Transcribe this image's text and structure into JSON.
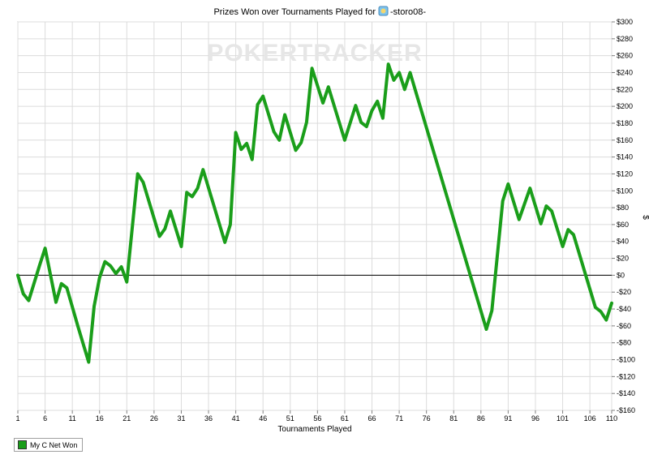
{
  "chart_data": {
    "type": "line",
    "title": "Prizes Won over Tournaments Played for",
    "player_name": "-storo08-",
    "watermark": "POKERTRACKER",
    "xlabel": "Tournaments Played",
    "ylabel": "$",
    "xlim": [
      1,
      110
    ],
    "ylim": [
      -160,
      300
    ],
    "x_ticks": [
      1,
      6,
      11,
      16,
      21,
      26,
      31,
      36,
      41,
      46,
      51,
      56,
      61,
      66,
      71,
      76,
      81,
      86,
      91,
      96,
      101,
      106,
      110
    ],
    "y_ticks": [
      300,
      280,
      260,
      240,
      220,
      200,
      180,
      160,
      140,
      120,
      100,
      80,
      60,
      40,
      20,
      0,
      -20,
      -40,
      -60,
      -80,
      -100,
      -120,
      -140,
      -160
    ],
    "y_tick_labels": [
      "$300",
      "$280",
      "$260",
      "$240",
      "$220",
      "$200",
      "$180",
      "$160",
      "$140",
      "$120",
      "$100",
      "$80",
      "$60",
      "$40",
      "$20",
      "$0",
      "-$20",
      "-$40",
      "-$60",
      "-$80",
      "-$100",
      "-$120",
      "-$140",
      "-$160"
    ],
    "grid": true,
    "legend_position": "bottom-left",
    "colors": {
      "series": "#1a9e1a",
      "grid": "#dcdcdc",
      "zero_line": "#000000",
      "watermark": "#e6e6e6"
    },
    "series": [
      {
        "name": "My C Net Won",
        "x": [
          1,
          2,
          3,
          5,
          6,
          8,
          9,
          10,
          12,
          14,
          15,
          16,
          17,
          18,
          19,
          20,
          21,
          23,
          24,
          27,
          28,
          29,
          31,
          32,
          33,
          34,
          35,
          39,
          40,
          41,
          42,
          43,
          44,
          45,
          46,
          48,
          49,
          50,
          52,
          53,
          54,
          55,
          57,
          58,
          61,
          63,
          64,
          65,
          66,
          67,
          68,
          69,
          70,
          71,
          72,
          73,
          87,
          88,
          90,
          91,
          93,
          95,
          97,
          98,
          99,
          101,
          102,
          103,
          107,
          108,
          109,
          110
        ],
        "y": [
          0,
          -22,
          -30,
          12,
          32,
          -32,
          -10,
          -15,
          -60,
          -103,
          -37,
          -3,
          16,
          11,
          2,
          10,
          -8,
          120,
          110,
          46,
          55,
          76,
          34,
          98,
          93,
          103,
          125,
          39,
          60,
          169,
          149,
          156,
          137,
          202,
          212,
          170,
          160,
          190,
          148,
          157,
          181,
          245,
          204,
          223,
          160,
          201,
          181,
          176,
          195,
          206,
          186,
          250,
          231,
          240,
          220,
          240,
          -64,
          -42,
          88,
          108,
          66,
          103,
          61,
          82,
          76,
          34,
          54,
          48,
          -38,
          -43,
          -53,
          -33
        ]
      }
    ]
  }
}
